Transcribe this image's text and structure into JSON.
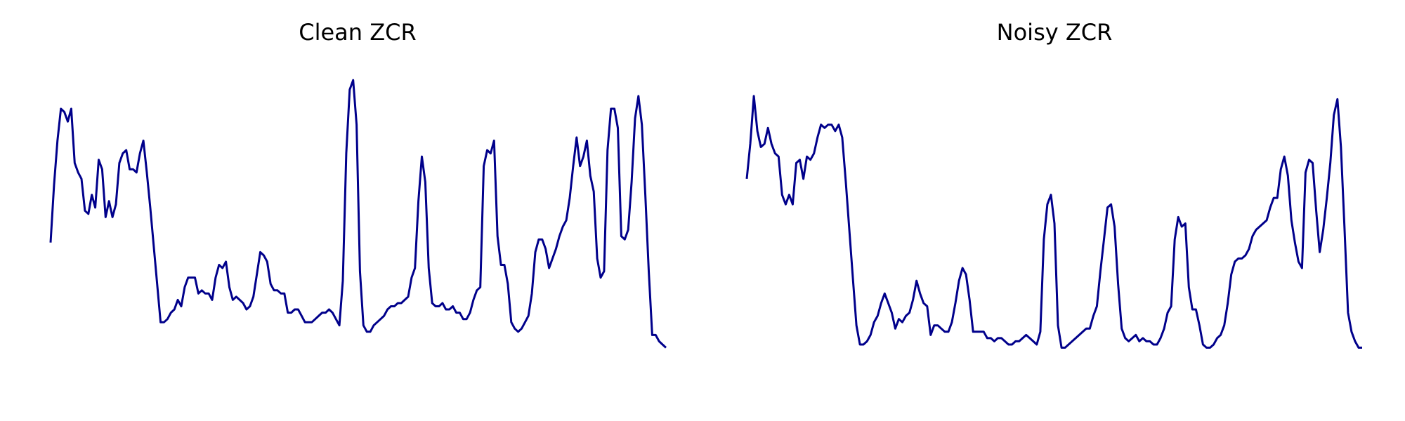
{
  "chart_data": [
    {
      "type": "line",
      "title": "Clean ZCR",
      "xlabel": "",
      "ylabel": "",
      "axes": "off",
      "grid": false,
      "ylim": [
        0,
        1
      ],
      "series": [
        {
          "color": "#00008b",
          "values": [
            0.45,
            0.63,
            0.77,
            0.87,
            0.86,
            0.83,
            0.87,
            0.7,
            0.67,
            0.65,
            0.55,
            0.54,
            0.6,
            0.56,
            0.71,
            0.68,
            0.53,
            0.58,
            0.53,
            0.57,
            0.7,
            0.73,
            0.74,
            0.68,
            0.68,
            0.67,
            0.73,
            0.77,
            0.67,
            0.56,
            0.44,
            0.32,
            0.2,
            0.2,
            0.21,
            0.23,
            0.24,
            0.27,
            0.25,
            0.31,
            0.34,
            0.34,
            0.34,
            0.29,
            0.3,
            0.29,
            0.29,
            0.27,
            0.34,
            0.38,
            0.37,
            0.39,
            0.31,
            0.27,
            0.28,
            0.27,
            0.26,
            0.24,
            0.25,
            0.28,
            0.35,
            0.42,
            0.41,
            0.39,
            0.32,
            0.3,
            0.3,
            0.29,
            0.29,
            0.23,
            0.23,
            0.24,
            0.24,
            0.22,
            0.2,
            0.2,
            0.2,
            0.21,
            0.22,
            0.23,
            0.23,
            0.24,
            0.23,
            0.21,
            0.19,
            0.33,
            0.73,
            0.93,
            0.96,
            0.82,
            0.36,
            0.19,
            0.17,
            0.17,
            0.19,
            0.2,
            0.21,
            0.22,
            0.24,
            0.25,
            0.25,
            0.26,
            0.26,
            0.27,
            0.28,
            0.34,
            0.37,
            0.58,
            0.72,
            0.64,
            0.37,
            0.26,
            0.25,
            0.25,
            0.26,
            0.24,
            0.24,
            0.25,
            0.23,
            0.23,
            0.21,
            0.21,
            0.23,
            0.27,
            0.3,
            0.31,
            0.69,
            0.74,
            0.73,
            0.77,
            0.47,
            0.38,
            0.38,
            0.32,
            0.2,
            0.18,
            0.17,
            0.18,
            0.2,
            0.22,
            0.29,
            0.42,
            0.46,
            0.46,
            0.43,
            0.37,
            0.4,
            0.43,
            0.47,
            0.5,
            0.52,
            0.59,
            0.69,
            0.78,
            0.69,
            0.72,
            0.77,
            0.66,
            0.61,
            0.4,
            0.34,
            0.36,
            0.74,
            0.87,
            0.87,
            0.81,
            0.47,
            0.46,
            0.49,
            0.64,
            0.84,
            0.91,
            0.82,
            0.6,
            0.36,
            0.16,
            0.16,
            0.14,
            0.13,
            0.12
          ]
        }
      ]
    },
    {
      "type": "line",
      "title": "Noisy ZCR",
      "xlabel": "",
      "ylabel": "",
      "axes": "off",
      "grid": false,
      "ylim": [
        0,
        1
      ],
      "series": [
        {
          "color": "#00008b",
          "values": [
            0.65,
            0.76,
            0.91,
            0.8,
            0.75,
            0.76,
            0.81,
            0.76,
            0.73,
            0.72,
            0.6,
            0.57,
            0.6,
            0.57,
            0.7,
            0.71,
            0.65,
            0.72,
            0.71,
            0.73,
            0.78,
            0.82,
            0.81,
            0.82,
            0.82,
            0.8,
            0.82,
            0.78,
            0.64,
            0.49,
            0.34,
            0.19,
            0.13,
            0.13,
            0.14,
            0.16,
            0.2,
            0.22,
            0.26,
            0.29,
            0.26,
            0.23,
            0.18,
            0.21,
            0.2,
            0.22,
            0.23,
            0.27,
            0.33,
            0.29,
            0.26,
            0.25,
            0.16,
            0.19,
            0.19,
            0.18,
            0.17,
            0.17,
            0.2,
            0.26,
            0.33,
            0.37,
            0.35,
            0.27,
            0.17,
            0.17,
            0.17,
            0.17,
            0.15,
            0.15,
            0.14,
            0.15,
            0.15,
            0.14,
            0.13,
            0.13,
            0.14,
            0.14,
            0.15,
            0.16,
            0.15,
            0.14,
            0.13,
            0.17,
            0.46,
            0.57,
            0.6,
            0.51,
            0.19,
            0.12,
            0.12,
            0.13,
            0.14,
            0.15,
            0.16,
            0.17,
            0.18,
            0.18,
            0.22,
            0.25,
            0.36,
            0.46,
            0.56,
            0.57,
            0.5,
            0.32,
            0.18,
            0.15,
            0.14,
            0.15,
            0.16,
            0.14,
            0.15,
            0.14,
            0.14,
            0.13,
            0.13,
            0.15,
            0.18,
            0.23,
            0.25,
            0.46,
            0.53,
            0.5,
            0.51,
            0.31,
            0.24,
            0.24,
            0.19,
            0.13,
            0.12,
            0.12,
            0.13,
            0.15,
            0.16,
            0.19,
            0.26,
            0.35,
            0.39,
            0.4,
            0.4,
            0.41,
            0.43,
            0.47,
            0.49,
            0.5,
            0.51,
            0.52,
            0.56,
            0.59,
            0.59,
            0.68,
            0.72,
            0.66,
            0.52,
            0.45,
            0.39,
            0.37,
            0.67,
            0.71,
            0.7,
            0.55,
            0.42,
            0.49,
            0.59,
            0.7,
            0.85,
            0.9,
            0.75,
            0.5,
            0.23,
            0.17,
            0.14,
            0.12,
            0.12
          ]
        }
      ]
    }
  ]
}
